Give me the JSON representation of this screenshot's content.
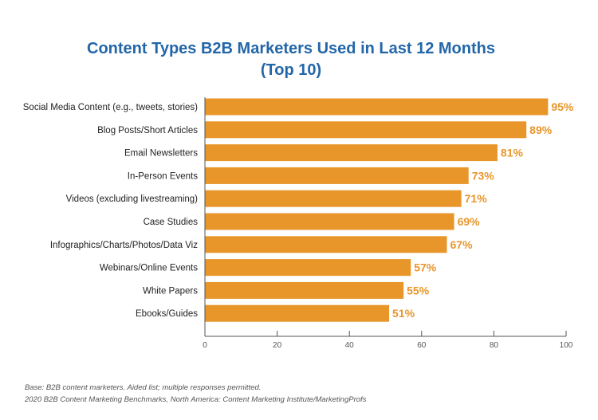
{
  "chart_data": {
    "type": "bar",
    "orientation": "horizontal",
    "title": "Content Types B2B Marketers Used in Last 12 Months",
    "subtitle": "(Top 10)",
    "categories": [
      "Social Media Content (e.g., tweets, stories)",
      "Blog Posts/Short Articles",
      "Email Newsletters",
      "In-Person Events",
      "Videos (excluding livestreaming)",
      "Case Studies",
      "Infographics/Charts/Photos/Data Viz",
      "Webinars/Online Events",
      "White Papers",
      "Ebooks/Guides"
    ],
    "values": [
      95,
      89,
      81,
      73,
      71,
      69,
      67,
      57,
      55,
      51
    ],
    "data_labels": [
      "95%",
      "89%",
      "81%",
      "73%",
      "71%",
      "69%",
      "67%",
      "57%",
      "55%",
      "51%"
    ],
    "xlim": [
      0,
      100
    ],
    "xticks": [
      0,
      20,
      40,
      60,
      80,
      100
    ],
    "grid": false,
    "bar_color": "#e8962a",
    "label_color": "#e8962a",
    "title_color": "#2366a8"
  },
  "notes": {
    "base": "Base: B2B content marketers. Aided list; multiple responses permitted.",
    "source": "2020 B2B Content Marketing Benchmarks, North America: Content Marketing Institute/MarketingProfs"
  }
}
